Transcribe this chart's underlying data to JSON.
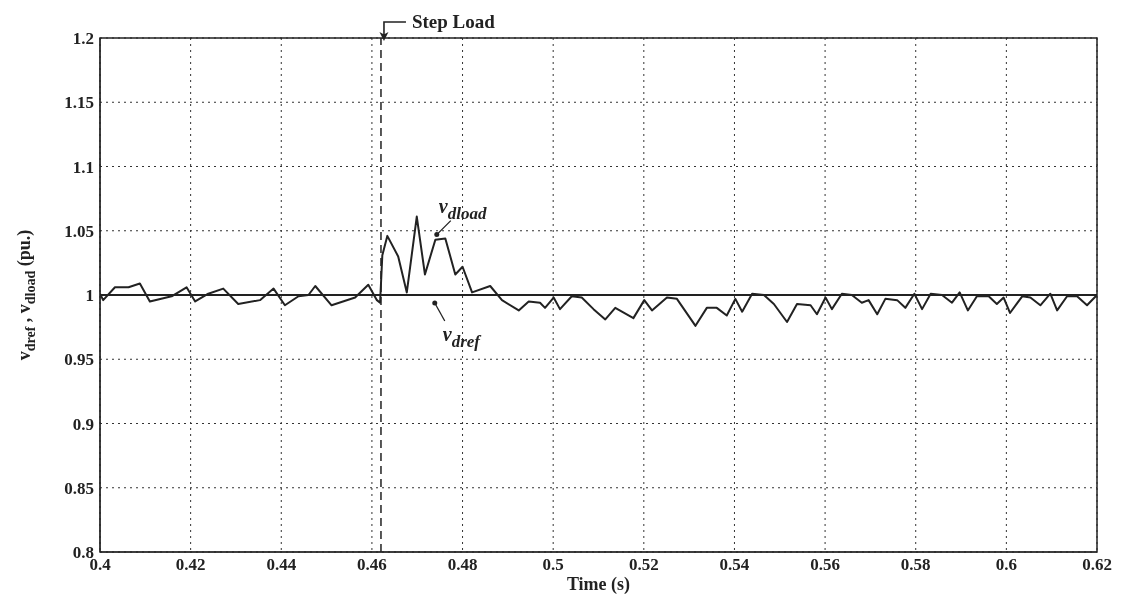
{
  "chart_data": {
    "type": "line",
    "xlabel": "Time (s)",
    "ylabel": "v$_{dref}$ , v$_{dload}$  (pu.)",
    "xlim": [
      0.4,
      0.62
    ],
    "xticks": [
      0.4,
      0.42,
      0.44,
      0.46,
      0.48,
      0.5,
      0.52,
      0.54,
      0.56,
      0.58,
      0.6,
      0.62
    ],
    "ylim": [
      0.8,
      1.2
    ],
    "yticks": [
      0.8,
      0.85,
      0.9,
      0.95,
      1,
      1.05,
      1.1,
      1.15,
      1.2
    ],
    "grid": true,
    "line_style": "solid",
    "series": [
      {
        "name": "v$_{dload}$",
        "color": "#222222",
        "x": [
          0.4,
          0.4007,
          0.4033,
          0.4063,
          0.4088,
          0.411,
          0.4158,
          0.4191,
          0.421,
          0.4239,
          0.4272,
          0.4305,
          0.4353,
          0.4383,
          0.4408,
          0.4438,
          0.446,
          0.4475,
          0.4511,
          0.4563,
          0.4592,
          0.4611,
          0.4618,
          0.4623,
          0.4634,
          0.4658,
          0.4677,
          0.4699,
          0.4717,
          0.474,
          0.4762,
          0.4784,
          0.48,
          0.4821,
          0.4861,
          0.4887,
          0.4924,
          0.4946,
          0.4971,
          0.4982,
          0.5001,
          0.5015,
          0.5041,
          0.5063,
          0.5089,
          0.5115,
          0.5137,
          0.5177,
          0.5201,
          0.5218,
          0.5251,
          0.5273,
          0.5314,
          0.5339,
          0.5361,
          0.5383,
          0.5402,
          0.5417,
          0.5439,
          0.5465,
          0.5487,
          0.5516,
          0.5538,
          0.5568,
          0.5582,
          0.5601,
          0.5615,
          0.5637,
          0.5659,
          0.5681,
          0.5696,
          0.5715,
          0.5733,
          0.5759,
          0.5777,
          0.5797,
          0.5814,
          0.5833,
          0.5858,
          0.588,
          0.5897,
          0.5915,
          0.5935,
          0.5961,
          0.5979,
          0.5994,
          0.6008,
          0.6035,
          0.6053,
          0.6075,
          0.6097,
          0.6112,
          0.6134,
          0.6156,
          0.6178,
          0.62
        ],
        "values": [
          1.001,
          0.996,
          1.006,
          1.006,
          1.009,
          0.995,
          0.999,
          1.006,
          0.995,
          1.001,
          1.005,
          0.993,
          0.996,
          1.005,
          0.992,
          0.999,
          1.0,
          1.007,
          0.992,
          0.998,
          1.008,
          0.996,
          0.994,
          1.031,
          1.046,
          1.03,
          1.002,
          1.061,
          1.016,
          1.043,
          1.044,
          1.016,
          1.022,
          1.002,
          1.007,
          0.996,
          0.988,
          0.995,
          0.994,
          0.99,
          0.998,
          0.989,
          0.999,
          0.998,
          0.989,
          0.981,
          0.99,
          0.982,
          0.996,
          0.988,
          0.998,
          0.997,
          0.976,
          0.99,
          0.99,
          0.984,
          0.997,
          0.987,
          1.001,
          1.0,
          0.993,
          0.979,
          0.993,
          0.992,
          0.985,
          0.998,
          0.989,
          1.001,
          1.0,
          0.994,
          0.996,
          0.985,
          0.997,
          0.996,
          0.99,
          1.001,
          0.989,
          1.001,
          1.0,
          0.994,
          1.002,
          0.988,
          0.999,
          0.999,
          0.993,
          0.998,
          0.986,
          0.999,
          0.998,
          0.992,
          1.001,
          0.988,
          0.999,
          0.999,
          0.992,
          1.0
        ]
      },
      {
        "name": "v$_{dref}$",
        "color": "#222222",
        "x": [
          0.4,
          0.62
        ],
        "values": [
          1,
          1
        ]
      }
    ],
    "ref_lines": [
      {
        "axis": "x",
        "value": 0.462,
        "label": "Step Load",
        "line_style": "dashed",
        "color": "#222222"
      }
    ]
  }
}
